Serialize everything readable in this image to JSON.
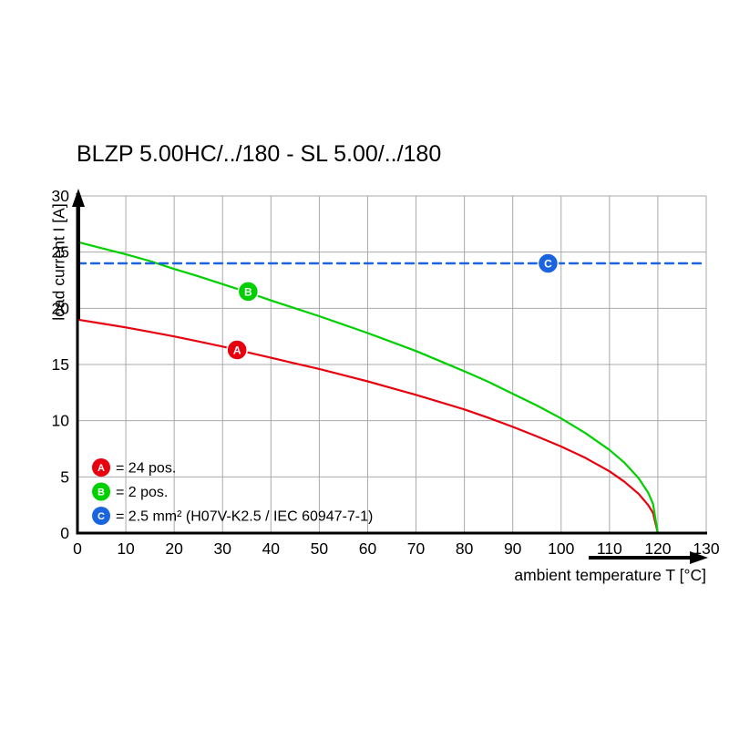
{
  "title": "BLZP 5.00HC/../180 - SL 5.00/../180",
  "chart_data": {
    "type": "line",
    "title": "BLZP 5.00HC/../180 - SL 5.00/../180",
    "xlabel": "ambient temperature T [°C]",
    "ylabel": "load current I [A]",
    "xlim": [
      0,
      130
    ],
    "ylim": [
      0,
      30
    ],
    "xtick": 10,
    "ytick": 5,
    "grid": true,
    "legend_position": "inside bottom-left",
    "colors": {
      "grid": "#a9a9a9",
      "axis": "#000000",
      "background": "#ffffff"
    },
    "series": [
      {
        "name": "A",
        "legend": "= 24 pos.",
        "color": "#e8000e",
        "style": "solid",
        "marker": {
          "x": 33,
          "y": 16.3
        },
        "points": [
          [
            0,
            19.0
          ],
          [
            5,
            18.65
          ],
          [
            10,
            18.3
          ],
          [
            15,
            17.9
          ],
          [
            20,
            17.5
          ],
          [
            25,
            17.05
          ],
          [
            30,
            16.6
          ],
          [
            35,
            16.1
          ],
          [
            40,
            15.6
          ],
          [
            45,
            15.1
          ],
          [
            50,
            14.6
          ],
          [
            55,
            14.05
          ],
          [
            60,
            13.5
          ],
          [
            65,
            12.9
          ],
          [
            70,
            12.3
          ],
          [
            75,
            11.65
          ],
          [
            80,
            11.0
          ],
          [
            85,
            10.25
          ],
          [
            90,
            9.45
          ],
          [
            95,
            8.6
          ],
          [
            100,
            7.7
          ],
          [
            105,
            6.7
          ],
          [
            110,
            5.5
          ],
          [
            113,
            4.6
          ],
          [
            116,
            3.5
          ],
          [
            118,
            2.5
          ],
          [
            119,
            1.8
          ],
          [
            120,
            0
          ]
        ]
      },
      {
        "name": "B",
        "legend": "= 2 pos.",
        "color": "#00d000",
        "style": "solid",
        "marker": {
          "x": 35.3,
          "y": 21.5
        },
        "points": [
          [
            0,
            25.9
          ],
          [
            5,
            25.35
          ],
          [
            10,
            24.8
          ],
          [
            15,
            24.2
          ],
          [
            20,
            23.5
          ],
          [
            25,
            22.85
          ],
          [
            30,
            22.15
          ],
          [
            35,
            21.45
          ],
          [
            40,
            20.7
          ],
          [
            45,
            20.0
          ],
          [
            50,
            19.3
          ],
          [
            55,
            18.55
          ],
          [
            60,
            17.8
          ],
          [
            65,
            17.0
          ],
          [
            70,
            16.2
          ],
          [
            75,
            15.3
          ],
          [
            80,
            14.4
          ],
          [
            85,
            13.45
          ],
          [
            90,
            12.4
          ],
          [
            95,
            11.35
          ],
          [
            100,
            10.2
          ],
          [
            105,
            8.9
          ],
          [
            110,
            7.4
          ],
          [
            113,
            6.3
          ],
          [
            116,
            4.9
          ],
          [
            118,
            3.6
          ],
          [
            119,
            2.6
          ],
          [
            120,
            0
          ]
        ]
      },
      {
        "name": "C",
        "legend": "= 2.5 mm² (H07V-K2.5 / IEC 60947-7-1)",
        "color": "#1a64e0",
        "style": "dashed",
        "marker": {
          "x": 97.3,
          "y": 24
        },
        "points": [
          [
            0,
            24
          ],
          [
            130,
            24
          ]
        ]
      }
    ]
  }
}
